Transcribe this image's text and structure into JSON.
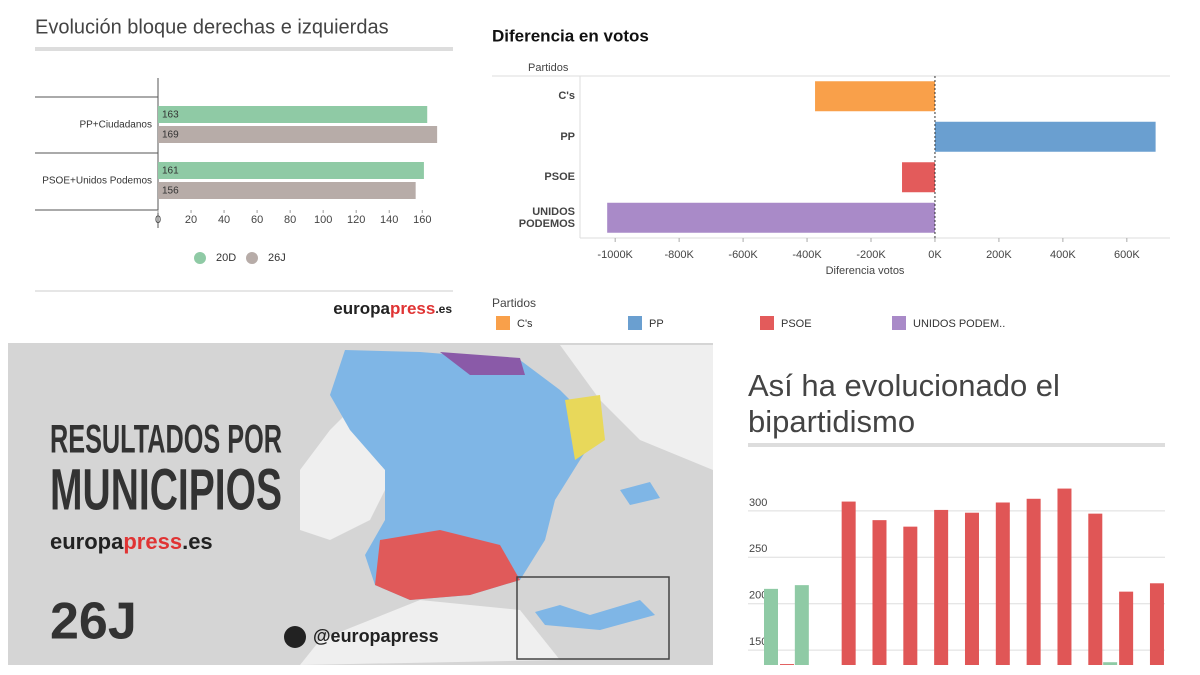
{
  "chart_data": [
    {
      "type": "hbar",
      "title": "Evolución bloque derechas e izquierdas",
      "categories": [
        "PP+Ciudadanos",
        "PSOE+Unidos Podemos"
      ],
      "series": [
        {
          "name": "20D",
          "color": "#8fcaa5",
          "values": [
            163,
            161
          ]
        },
        {
          "name": "26J",
          "color": "#b7aca8",
          "values": [
            169,
            156
          ]
        }
      ],
      "xlim": [
        0,
        178
      ],
      "xticks": [
        0,
        20,
        40,
        60,
        80,
        100,
        120,
        140,
        160
      ],
      "source": [
        "europa",
        "press",
        ".es"
      ]
    },
    {
      "type": "diverging",
      "title": "Diferencia en votos",
      "ylabel": "Partidos",
      "xlabel": "Diferencia votos",
      "categories": [
        "C's",
        "PP",
        "PSOE",
        "UNIDOS PODEMOS"
      ],
      "values": [
        -375000,
        690000,
        -103000,
        -1025000
      ],
      "colors": [
        "#f9a04a",
        "#6a9fd0",
        "#e35b5b",
        "#a98ac8"
      ],
      "xlim": [
        -1110000,
        735000
      ],
      "xticks": [
        {
          "value": -1000000,
          "label": "-1000K"
        },
        {
          "value": -800000,
          "label": "-800K"
        },
        {
          "value": -600000,
          "label": "-600K"
        },
        {
          "value": -400000,
          "label": "-400K"
        },
        {
          "value": -200000,
          "label": "-200K"
        },
        {
          "value": 0,
          "label": "0K"
        },
        {
          "value": 200000,
          "label": "200K"
        },
        {
          "value": 400000,
          "label": "400K"
        },
        {
          "value": 600000,
          "label": "600K"
        }
      ],
      "legend_title": "Partidos",
      "legend": [
        "C's",
        "PP",
        "PSOE",
        "UNIDOS PODEM.."
      ]
    },
    {
      "type": "column",
      "title": "Así ha evolucionado el bipartidismo",
      "categories": [
        null,
        null,
        null,
        null,
        null,
        null,
        null,
        null,
        null,
        null,
        null,
        null,
        null
      ],
      "series": [
        {
          "color": "#e05656",
          "values": [
            135,
            null,
            310,
            290,
            283,
            301,
            298,
            309,
            313,
            324,
            297,
            213,
            222
          ]
        },
        {
          "color": "#8fcaa5",
          "values": [
            216,
            220,
            null,
            null,
            null,
            null,
            null,
            null,
            null,
            null,
            null,
            137,
            null
          ]
        }
      ],
      "ylim": [
        134,
        330
      ],
      "yticks": [
        150,
        200,
        250,
        300
      ],
      "grid": true
    }
  ],
  "map_panel": {
    "headline": [
      "RESULTADOS POR",
      "MUNICIPIOS"
    ],
    "site": [
      "europa",
      "press",
      ".es"
    ],
    "tag": "26J",
    "handle": "@europapress"
  }
}
